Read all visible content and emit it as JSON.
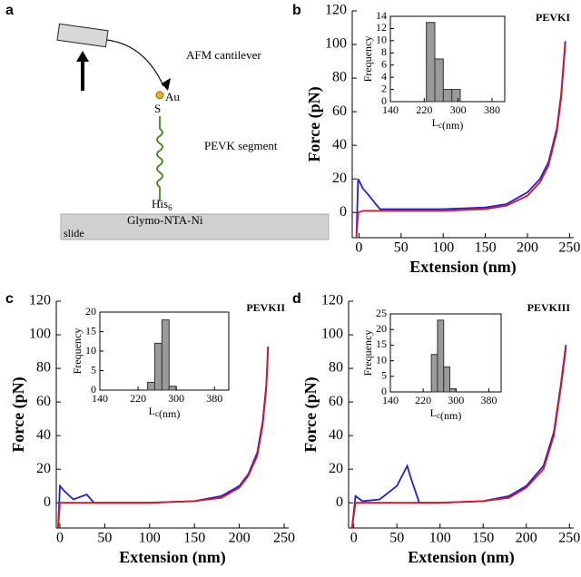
{
  "diagram": {
    "label": "a",
    "cantilever": "AFM cantilever",
    "gold": "Au",
    "sulfur": "S",
    "segment": "PEVK segment",
    "his": "His",
    "his_sub": "6",
    "surface": "Glymo-NTA-Ni",
    "slide": "slide"
  },
  "chart_data": [
    {
      "type": "line",
      "panel_label": "b",
      "annotation": "PEVKI",
      "xlabel": "Extension (nm)",
      "ylabel": "Force (pN)",
      "xlim": [
        -8,
        255
      ],
      "xticks": [
        0,
        50,
        100,
        150,
        200,
        250
      ],
      "ylim": [
        -15,
        120
      ],
      "yticks": [
        0,
        20,
        40,
        60,
        80,
        100,
        120
      ],
      "x": [
        -3,
        -1,
        5,
        12,
        20,
        25,
        50,
        100,
        150,
        175,
        200,
        215,
        225,
        235,
        240,
        245
      ],
      "series": [
        {
          "color": "#1f1fd6",
          "values": [
            -15,
            20,
            14,
            10,
            5,
            2,
            2,
            2,
            3,
            5,
            12,
            20,
            30,
            50,
            70,
            102
          ]
        },
        {
          "color": "#e0141e",
          "values": [
            -15,
            0,
            1,
            1,
            1,
            1,
            1,
            1,
            2,
            4,
            10,
            18,
            28,
            48,
            68,
            100
          ]
        }
      ],
      "inset": {
        "type": "histogram",
        "bins": [
          225,
          245,
          265,
          285,
          305
        ],
        "values": [
          13,
          7,
          2,
          2
        ],
        "color": "#9a9a9a",
        "xlim": [
          140,
          410
        ],
        "xticks": [
          140,
          220,
          300,
          380
        ],
        "ylim": [
          0,
          14
        ],
        "yticks": [
          0,
          2,
          4,
          6,
          8,
          10,
          12,
          14
        ],
        "ylabel": "Frequency",
        "xlabel": "L",
        "xlabel_sub": "c",
        "xlabel_unit": "(nm)"
      }
    },
    {
      "type": "line",
      "panel_label": "c",
      "annotation": "PEVKII",
      "xlabel": "Extension (nm)",
      "ylabel": "Force (pN)",
      "xlim": [
        -4,
        255
      ],
      "xticks": [
        0,
        50,
        100,
        150,
        200,
        250
      ],
      "ylim": [
        -15,
        120
      ],
      "yticks": [
        0,
        20,
        40,
        60,
        80,
        100,
        120
      ],
      "x": [
        -2,
        0,
        5,
        15,
        30,
        38,
        45,
        100,
        150,
        180,
        200,
        210,
        220,
        226,
        230,
        232
      ],
      "series": [
        {
          "color": "#1f1fd6",
          "values": [
            -15,
            10,
            7,
            2,
            5,
            0,
            0,
            0,
            1,
            4,
            10,
            17,
            30,
            48,
            70,
            93
          ]
        },
        {
          "color": "#e0141e",
          "values": [
            -15,
            0,
            0,
            0,
            0,
            0,
            0,
            0,
            1,
            3,
            9,
            16,
            28,
            46,
            68,
            92
          ]
        }
      ],
      "inset": {
        "type": "histogram",
        "bins": [
          240,
          255,
          270,
          285,
          300
        ],
        "values": [
          2,
          12,
          18,
          1
        ],
        "color": "#9a9a9a",
        "xlim": [
          140,
          410
        ],
        "xticks": [
          140,
          220,
          300,
          380
        ],
        "ylim": [
          0,
          20
        ],
        "yticks": [
          0,
          5,
          10,
          15,
          20
        ],
        "ylabel": "Frequency",
        "xlabel": "L",
        "xlabel_sub": "c",
        "xlabel_unit": "(nm)"
      }
    },
    {
      "type": "line",
      "panel_label": "d",
      "annotation": "PEVKIII",
      "xlabel": "Extension (nm)",
      "ylabel": "Force (pN)",
      "xlim": [
        -6,
        255
      ],
      "xticks": [
        0,
        50,
        100,
        150,
        200,
        250
      ],
      "ylim": [
        -15,
        120
      ],
      "yticks": [
        0,
        20,
        40,
        60,
        80,
        100,
        120
      ],
      "x": [
        -2,
        2,
        10,
        30,
        50,
        62,
        66,
        76,
        100,
        150,
        180,
        200,
        220,
        232,
        240,
        246
      ],
      "series": [
        {
          "color": "#1f1fd6",
          "values": [
            -15,
            4,
            1,
            2,
            10,
            22,
            15,
            0,
            0,
            1,
            4,
            10,
            22,
            42,
            70,
            94
          ]
        },
        {
          "color": "#e0141e",
          "values": [
            -15,
            0,
            0,
            0,
            0,
            0,
            0,
            0,
            0,
            1,
            3,
            9,
            20,
            40,
            68,
            92
          ]
        }
      ],
      "inset": {
        "type": "histogram",
        "bins": [
          240,
          255,
          270,
          285,
          300
        ],
        "values": [
          12,
          23,
          8,
          1
        ],
        "color": "#9a9a9a",
        "xlim": [
          140,
          410
        ],
        "xticks": [
          140,
          220,
          300,
          380
        ],
        "ylim": [
          0,
          25
        ],
        "yticks": [
          0,
          5,
          10,
          15,
          20,
          25
        ],
        "ylabel": "Frequency",
        "xlabel": "L",
        "xlabel_sub": "c",
        "xlabel_unit": "(nm)"
      }
    }
  ]
}
